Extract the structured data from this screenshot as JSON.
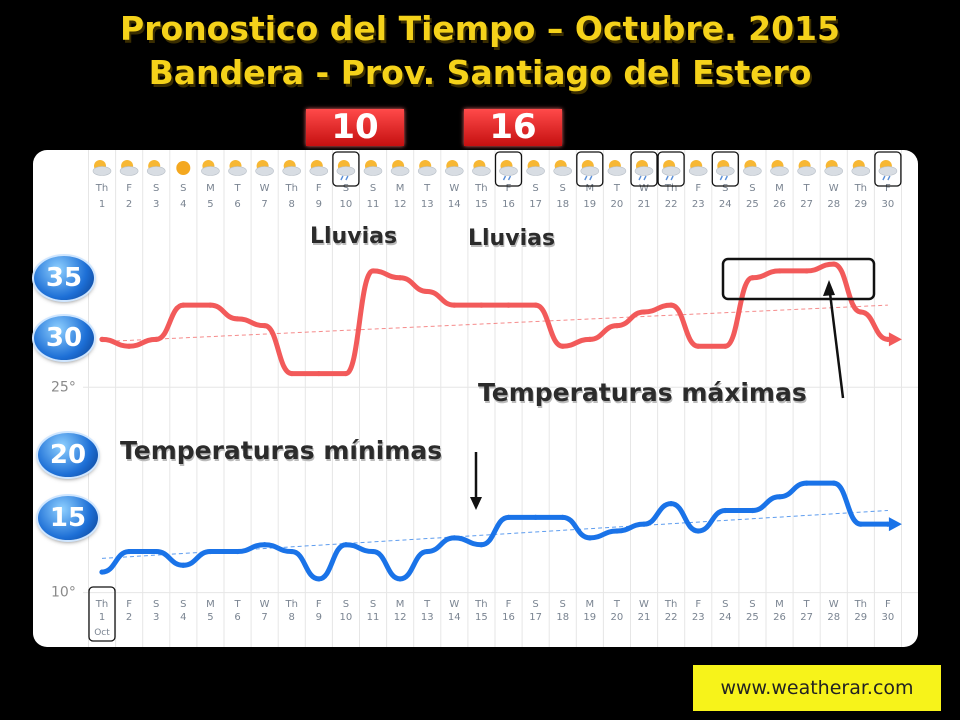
{
  "title_line1": "Pronostico  del Tiempo – Octubre. 2015",
  "title_line2": "Bandera - Prov. Santiago del Estero",
  "date_badges": [
    "10",
    "16"
  ],
  "temp_badges": [
    "35",
    "30",
    "20",
    "15"
  ],
  "annotations": {
    "rain1": "Lluvias",
    "rain2": "Lluvias",
    "max": "Temperaturas máximas",
    "min": "Temperaturas mínimas"
  },
  "watermark": "www.weatherar.com",
  "colors": {
    "max_line": "#f25a5a",
    "min_line": "#1a73e8",
    "title": "#f5d21a",
    "badge": "#e02020"
  },
  "chart_data": {
    "type": "line",
    "x_day_abbrev": [
      "Th",
      "F",
      "S",
      "S",
      "M",
      "T",
      "W",
      "Th",
      "F",
      "S",
      "S",
      "M",
      "T",
      "W",
      "Th",
      "F",
      "S",
      "S",
      "M",
      "T",
      "W",
      "Th",
      "F",
      "S",
      "S",
      "M",
      "T",
      "W",
      "Th",
      "F"
    ],
    "x": [
      "1",
      "2",
      "3",
      "4",
      "5",
      "6",
      "7",
      "8",
      "9",
      "10",
      "11",
      "12",
      "13",
      "14",
      "15",
      "16",
      "17",
      "18",
      "19",
      "20",
      "21",
      "22",
      "23",
      "24",
      "25",
      "26",
      "27",
      "28",
      "29",
      "30"
    ],
    "month_label": "Oct",
    "weather_icons": [
      "partly-cloudy",
      "partly-cloudy",
      "partly-cloudy",
      "sunny",
      "partly-cloudy",
      "partly-cloudy",
      "partly-cloudy",
      "partly-cloudy",
      "partly-cloudy",
      "rain",
      "partly-cloudy",
      "partly-cloudy",
      "partly-cloudy",
      "partly-cloudy",
      "partly-cloudy",
      "rain",
      "partly-cloudy",
      "partly-cloudy",
      "storm",
      "partly-cloudy",
      "storm",
      "storm",
      "partly-cloudy",
      "rain",
      "partly-cloudy",
      "partly-cloudy",
      "partly-cloudy",
      "partly-cloudy",
      "partly-cloudy",
      "storm"
    ],
    "highlighted_days": [
      "10",
      "16",
      "19",
      "21",
      "22",
      "24",
      "30"
    ],
    "y_ticks": [
      "25°",
      "10°"
    ],
    "series": [
      {
        "name": "Temperaturas máximas",
        "values": [
          28.5,
          28,
          28.5,
          31,
          31,
          30,
          29.5,
          26,
          26,
          26,
          33.5,
          33,
          32,
          31,
          31,
          31,
          31,
          28,
          28.5,
          29.5,
          30.5,
          31,
          28,
          28,
          33,
          33.5,
          33.5,
          34,
          30.5,
          28.5
        ]
      },
      {
        "name": "Temperaturas mínimas",
        "values": [
          11.5,
          13,
          13,
          12,
          13,
          13,
          13.5,
          13,
          11,
          13.5,
          13,
          11,
          13,
          14,
          13.5,
          15.5,
          15.5,
          15.5,
          14,
          14.5,
          15,
          16.5,
          14.5,
          16,
          16,
          17,
          18,
          18,
          15,
          15
        ]
      }
    ],
    "trend_lines": true,
    "ylim": [
      8,
      37
    ]
  }
}
